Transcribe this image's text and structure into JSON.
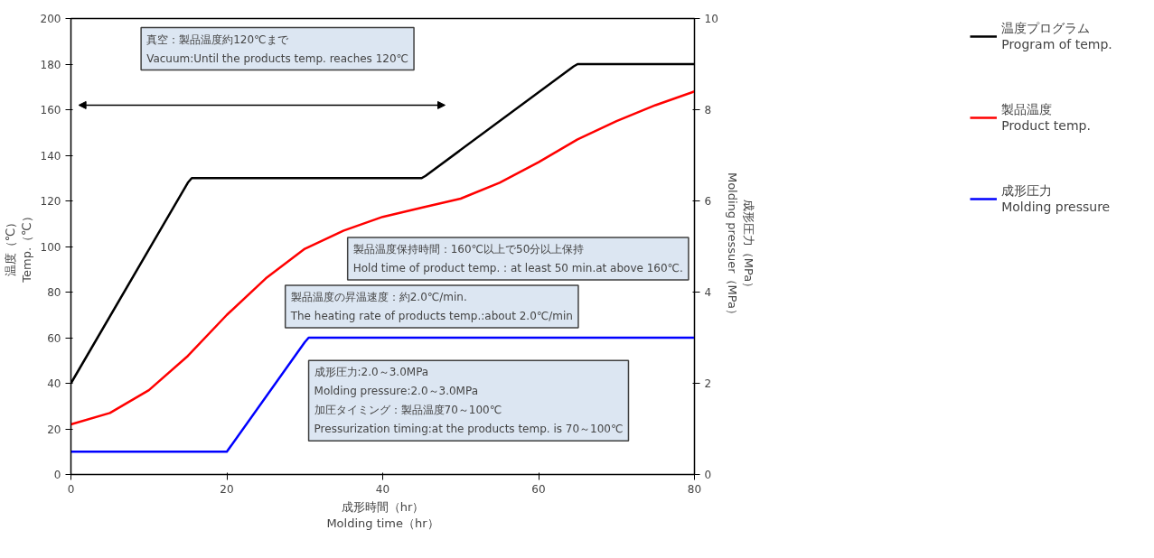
{
  "chart_data": {
    "type": "line",
    "xlabel": "成形時間（hr）\nMolding time（hr）",
    "ylabel": "温度（℃）\nTemp.（℃）",
    "y2label": "成形圧力（MPa）\nMolding pressuer（MPa）",
    "xlim": [
      0,
      80
    ],
    "xticks": [
      0,
      20,
      40,
      60,
      80
    ],
    "ylim": [
      0,
      200
    ],
    "yticks": [
      0,
      20,
      40,
      60,
      80,
      100,
      120,
      140,
      160,
      180,
      200
    ],
    "y2lim": [
      0,
      10
    ],
    "y2ticks": [
      0,
      2,
      4,
      6,
      8,
      10
    ],
    "grid": false,
    "legend": "right",
    "marker": "none",
    "line_style": "solid",
    "series": [
      {
        "name": "温度プログラム\nProgram of temp.",
        "color": "#000000",
        "x": [
          0,
          15,
          15.5,
          16,
          45,
          45.5,
          64.5,
          65,
          80
        ],
        "values": [
          40,
          128,
          130,
          130,
          130,
          131,
          179,
          180,
          180
        ]
      },
      {
        "name": "製品温度\nProduct temp.",
        "color": "#ff0000",
        "x": [
          0,
          5,
          10,
          15,
          20,
          25,
          30,
          35,
          40,
          45,
          50,
          55,
          60,
          65,
          70,
          75,
          80
        ],
        "values": [
          22,
          27,
          37,
          52,
          70,
          86,
          99,
          107,
          113,
          117,
          121,
          128,
          137,
          147,
          155,
          162,
          168
        ]
      },
      {
        "name": "成形圧力\nMolding pressure",
        "color": "#0000ff",
        "axis": "y2",
        "x": [
          0,
          19.5,
          20,
          30,
          30.5,
          80
        ],
        "values": [
          0.5,
          0.5,
          0.5,
          2.9,
          3.0,
          3.0
        ]
      }
    ],
    "annotations": [
      "真空：製品温度約120℃まで\nVacuum:Until the products temp. reaches 120℃",
      "製品温度保持時間：160℃以上で50分以上保持\nHold time of product temp. : at least 50 min.at above 160℃.",
      "製品温度の昇温速度：約2.0℃/min.\nThe heating rate of products temp.:about 2.0℃/min",
      "成形圧力:2.0～3.0MPa\nMolding pressure:2.0～3.0MPa\n加圧タイミング：製品温度70～100℃\nPressurization timing:at the products temp. is 70～100℃"
    ]
  }
}
